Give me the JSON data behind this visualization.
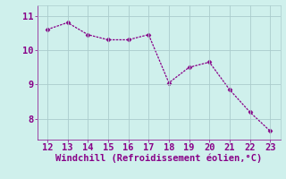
{
  "x": [
    12,
    13,
    14,
    15,
    16,
    17,
    18,
    19,
    20,
    21,
    22,
    23
  ],
  "y": [
    10.6,
    10.8,
    10.45,
    10.3,
    10.3,
    10.45,
    9.05,
    9.5,
    9.65,
    8.85,
    8.2,
    7.65
  ],
  "line_color": "#880088",
  "marker": "D",
  "marker_size": 2.5,
  "bg_color": "#cff0ec",
  "grid_color": "#aacccc",
  "xlabel": "Windchill (Refroidissement éolien,°C)",
  "xlabel_color": "#880088",
  "tick_color": "#880088",
  "ylim": [
    7.4,
    11.3
  ],
  "xlim": [
    11.5,
    23.5
  ],
  "yticks": [
    8,
    9,
    10,
    11
  ],
  "xticks": [
    12,
    13,
    14,
    15,
    16,
    17,
    18,
    19,
    20,
    21,
    22,
    23
  ],
  "font_size": 7.5,
  "xlabel_fontsize": 7.5
}
